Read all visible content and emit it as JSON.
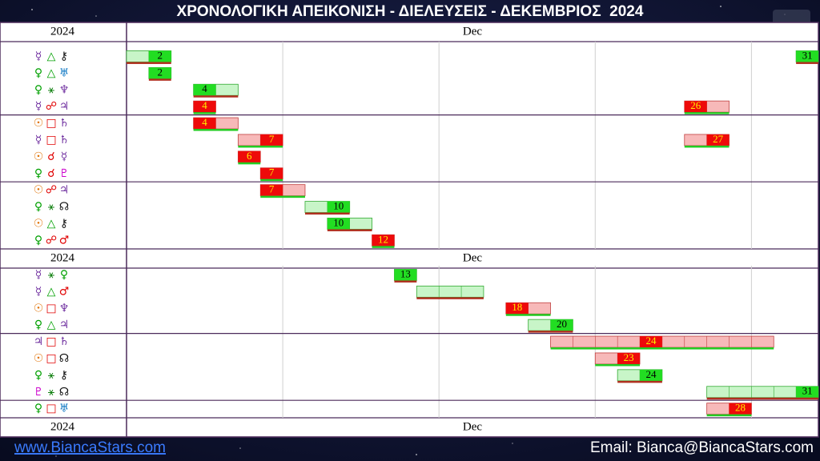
{
  "title": "ΧΡΟΝΟΛΟΓΙΚΗ ΑΠΕΙΚΟΝΙΣΗ - ΔΙΕΛΕΥΣΕΙΣ - ΔΕΚΕΜΒΡΙΟΣ  2024",
  "axis_rows": [
    {
      "year": "2024",
      "month": "Dec"
    },
    {
      "year": "2024",
      "month": "Dec"
    },
    {
      "year": "2024",
      "month": "Dec"
    }
  ],
  "glyph_colors": {
    "☿": "#7030a0",
    "♀": "#00a000",
    "☉": "#e07000",
    "♃": "#7030a0",
    "♇": "#cc00cc",
    "△": "#00a000",
    "⚹": "#108010",
    "□": "#e00000",
    "☍": "#e00000",
    "☌": "#e00000",
    "⚷": "#111111",
    "♅": "#0070c0",
    "♆": "#7030a0",
    "♄": "#7030a0",
    "☊": "#111111",
    "♂": "#e00000"
  },
  "row_groups": [
    [
      {
        "glyphs": [
          "☿",
          "△",
          "⚷"
        ],
        "bars": [
          {
            "color": "green",
            "start": 1,
            "end": 2,
            "peak": 2
          },
          {
            "color": "green",
            "start": 31,
            "end": 31,
            "peak": 31
          }
        ]
      },
      {
        "glyphs": [
          "♀",
          "△",
          "♅"
        ],
        "bars": [
          {
            "color": "green",
            "start": 2,
            "end": 2,
            "peak": 2
          }
        ]
      },
      {
        "glyphs": [
          "♀",
          "⚹",
          "♆"
        ],
        "bars": [
          {
            "color": "green",
            "start": 4,
            "end": 5,
            "peak": 4
          }
        ]
      },
      {
        "glyphs": [
          "☿",
          "☍",
          "♃"
        ],
        "bars": [
          {
            "color": "red",
            "start": 4,
            "end": 4,
            "peak": 4
          },
          {
            "color": "red",
            "start": 26,
            "end": 27,
            "peak": 26
          }
        ]
      },
      {
        "glyphs": [
          "☉",
          "□",
          "♄"
        ],
        "bars": [
          {
            "color": "red",
            "start": 4,
            "end": 5,
            "peak": 4
          }
        ]
      },
      {
        "glyphs": [
          "☿",
          "□",
          "♄"
        ],
        "bars": [
          {
            "color": "red",
            "start": 6,
            "end": 7,
            "peak": 7
          },
          {
            "color": "red",
            "start": 26,
            "end": 27,
            "peak": 27
          }
        ]
      },
      {
        "glyphs": [
          "☉",
          "☌",
          "☿"
        ],
        "bars": [
          {
            "color": "red",
            "start": 6,
            "end": 6,
            "peak": 6
          }
        ]
      },
      {
        "glyphs": [
          "♀",
          "☌",
          "♇"
        ],
        "bars": [
          {
            "color": "red",
            "start": 7,
            "end": 7,
            "peak": 7
          }
        ]
      },
      {
        "glyphs": [
          "☉",
          "☍",
          "♃"
        ],
        "bars": [
          {
            "color": "red",
            "start": 7,
            "end": 8,
            "peak": 7
          }
        ]
      },
      {
        "glyphs": [
          "♀",
          "⚹",
          "☊"
        ],
        "bars": [
          {
            "color": "green",
            "start": 9,
            "end": 10,
            "peak": 10
          }
        ]
      },
      {
        "glyphs": [
          "☉",
          "△",
          "⚷"
        ],
        "bars": [
          {
            "color": "green",
            "start": 10,
            "end": 11,
            "peak": 10
          }
        ]
      },
      {
        "glyphs": [
          "♀",
          "☍",
          "♂"
        ],
        "bars": [
          {
            "color": "red",
            "start": 12,
            "end": 12,
            "peak": 12
          }
        ]
      }
    ],
    [
      {
        "glyphs": [
          "☿",
          "⚹",
          "♀"
        ],
        "bars": [
          {
            "color": "green",
            "start": 13,
            "end": 13,
            "peak": 13
          }
        ]
      },
      {
        "glyphs": [
          "☿",
          "△",
          "♂"
        ],
        "bars": [
          {
            "color": "green",
            "start": 14,
            "end": 16,
            "peak": null
          }
        ]
      },
      {
        "glyphs": [
          "☉",
          "□",
          "♆"
        ],
        "bars": [
          {
            "color": "red",
            "start": 18,
            "end": 19,
            "peak": 18
          }
        ]
      },
      {
        "glyphs": [
          "♀",
          "△",
          "♃"
        ],
        "bars": [
          {
            "color": "green",
            "start": 19,
            "end": 20,
            "peak": 20
          }
        ]
      },
      {
        "glyphs": [
          "♃",
          "□",
          "♄"
        ],
        "bars": [
          {
            "color": "red",
            "start": 20,
            "end": 29,
            "peak": 24
          }
        ]
      },
      {
        "glyphs": [
          "☉",
          "□",
          "☊"
        ],
        "bars": [
          {
            "color": "red",
            "start": 22,
            "end": 23,
            "peak": 23
          }
        ]
      },
      {
        "glyphs": [
          "♀",
          "⚹",
          "⚷"
        ],
        "bars": [
          {
            "color": "green",
            "start": 23,
            "end": 24,
            "peak": 24
          }
        ]
      },
      {
        "glyphs": [
          "♇",
          "⚹",
          "☊"
        ],
        "bars": [
          {
            "color": "green",
            "start": 27,
            "end": 31,
            "peak": 31
          }
        ]
      },
      {
        "glyphs": [
          "♀",
          "□",
          "♅"
        ],
        "bars": [
          {
            "color": "red",
            "start": 27,
            "end": 28,
            "peak": 28
          }
        ]
      }
    ]
  ],
  "footer": {
    "website": "www.BiancaStars.com",
    "email": "Email: Bianca@BiancaStars.com"
  }
}
